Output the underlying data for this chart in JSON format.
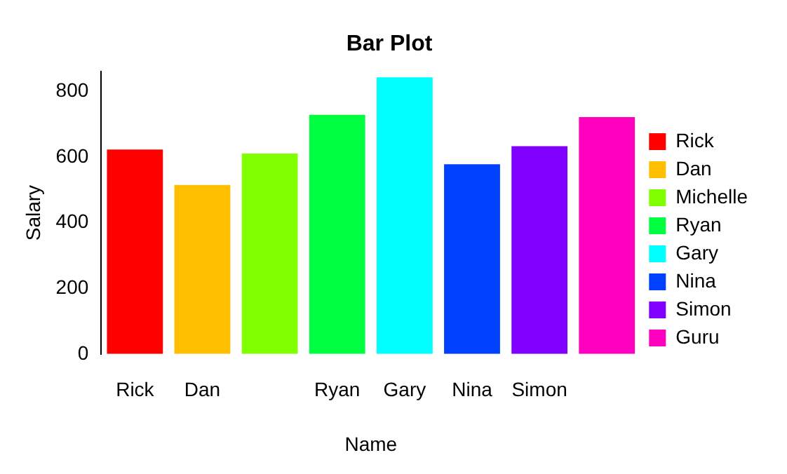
{
  "chart_data": {
    "type": "bar",
    "title": "Bar Plot",
    "xlabel": "Name",
    "ylabel": "Salary",
    "categories": [
      "Rick",
      "Dan",
      null,
      "Ryan",
      "Gary",
      "Nina",
      "Simon",
      null
    ],
    "stacked": true,
    "series": [
      {
        "name": "Rick",
        "color": "#ff0000",
        "values": [
          623,
          null,
          null,
          null,
          null,
          null,
          null,
          null
        ]
      },
      {
        "name": "Dan",
        "color": "#ffbf00",
        "values": [
          null,
          515,
          null,
          null,
          null,
          null,
          null,
          null
        ]
      },
      {
        "name": "Michelle",
        "color": "#80ff00",
        "values": [
          null,
          null,
          611,
          null,
          null,
          null,
          null,
          null
        ]
      },
      {
        "name": "Ryan",
        "color": "#00ff40",
        "values": [
          null,
          null,
          null,
          729,
          null,
          null,
          null,
          null
        ]
      },
      {
        "name": "Gary",
        "color": "#00ffff",
        "values": [
          null,
          null,
          null,
          null,
          843,
          null,
          null,
          null
        ]
      },
      {
        "name": "Nina",
        "color": "#0040ff",
        "values": [
          null,
          null,
          null,
          null,
          null,
          578,
          null,
          null
        ]
      },
      {
        "name": "Simon",
        "color": "#8000ff",
        "values": [
          null,
          null,
          null,
          null,
          null,
          null,
          633,
          null
        ]
      },
      {
        "name": "Guru",
        "color": "#ff00bf",
        "values": [
          null,
          null,
          null,
          null,
          null,
          null,
          null,
          722
        ]
      }
    ],
    "ylim": [
      0,
      860
    ],
    "yticks": [
      0,
      200,
      400,
      600,
      800
    ],
    "grid": false,
    "legend": "right"
  }
}
